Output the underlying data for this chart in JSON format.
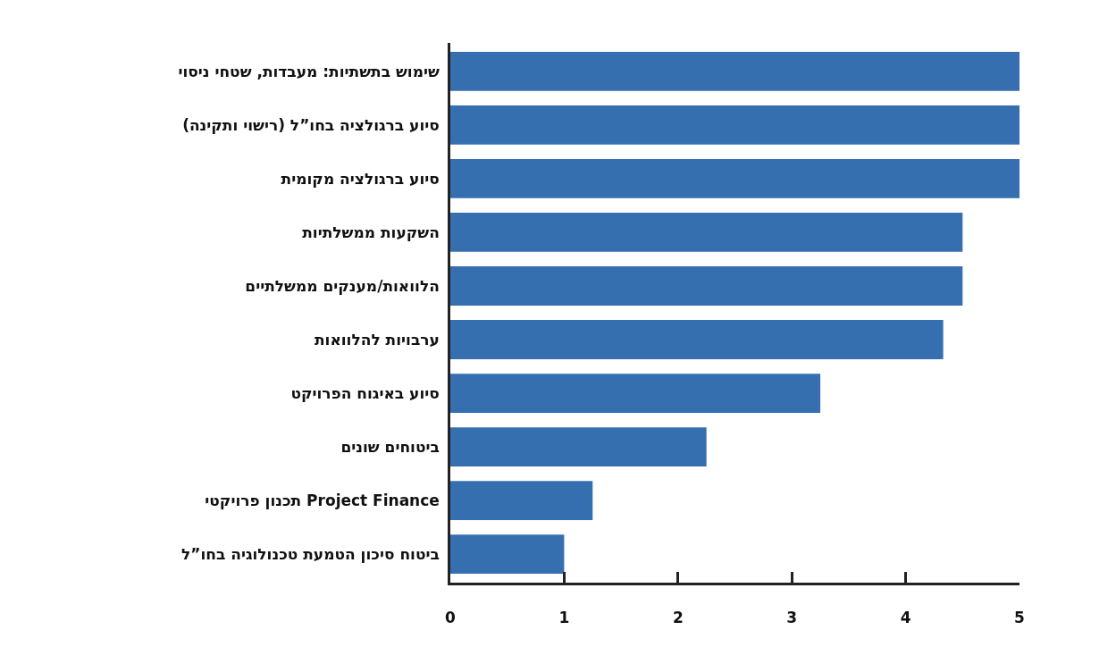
{
  "chart_data": {
    "type": "bar",
    "orientation": "horizontal",
    "categories": [
      "שימוש בתשתיות: מעבדות, שטחי ניסוי",
      "סיוע ברגולציה בחו”ל (רישוי ותקינה)",
      "סיוע ברגולציה מקומית",
      "השקעות ממשלתיות",
      "הלוואות/מענקים ממשלתיים",
      "ערבויות להלוואות",
      "סיוע באיגוח הפרויקט",
      "ביטוחים שונים",
      "תכנון פרויקטי Project Finance",
      "ביטוח סיכון הטמעת טכנולוגיה בחו”ל"
    ],
    "values": [
      5,
      5,
      5,
      4.5,
      4.5,
      4.33,
      3.25,
      2.25,
      1.25,
      1.0
    ],
    "color": "#356fb0",
    "xlim": [
      0,
      5
    ],
    "xticks": [
      0,
      1,
      2,
      3,
      4,
      5
    ]
  }
}
